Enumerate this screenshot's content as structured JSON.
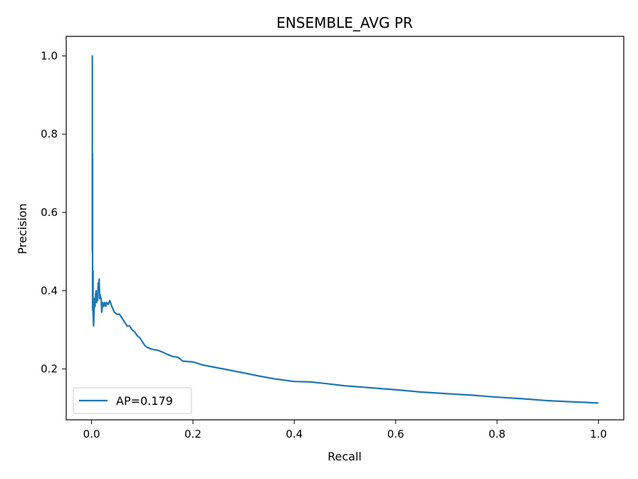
{
  "chart_data": {
    "type": "line",
    "title": "ENSEMBLE_AVG PR",
    "xlabel": "Recall",
    "ylabel": "Precision",
    "xlim": [
      -0.05,
      1.05
    ],
    "ylim": [
      0.07,
      1.05
    ],
    "xticks": [
      0.0,
      0.2,
      0.4,
      0.6,
      0.8,
      1.0
    ],
    "yticks": [
      0.2,
      0.4,
      0.6,
      0.8,
      1.0
    ],
    "xtick_labels": [
      "0.0",
      "0.2",
      "0.4",
      "0.6",
      "0.8",
      "1.0"
    ],
    "ytick_labels": [
      "0.2",
      "0.4",
      "0.6",
      "0.8",
      "1.0"
    ],
    "grid": false,
    "legend_position": "lower-left",
    "series": [
      {
        "name": "AP=0.179",
        "color": "#1f77b4",
        "x": [
          0.0,
          0.0015,
          0.0015,
          0.002,
          0.002,
          0.003,
          0.003,
          0.004,
          0.005,
          0.006,
          0.007,
          0.008,
          0.009,
          0.01,
          0.011,
          0.012,
          0.013,
          0.014,
          0.015,
          0.016,
          0.017,
          0.018,
          0.019,
          0.02,
          0.022,
          0.024,
          0.026,
          0.028,
          0.03,
          0.033,
          0.036,
          0.04,
          0.045,
          0.05,
          0.055,
          0.06,
          0.065,
          0.07,
          0.075,
          0.08,
          0.085,
          0.09,
          0.095,
          0.1,
          0.105,
          0.11,
          0.12,
          0.13,
          0.14,
          0.15,
          0.16,
          0.17,
          0.18,
          0.2,
          0.22,
          0.24,
          0.26,
          0.28,
          0.3,
          0.33,
          0.36,
          0.4,
          0.43,
          0.46,
          0.5,
          0.55,
          0.6,
          0.65,
          0.7,
          0.75,
          0.8,
          0.85,
          0.9,
          0.95,
          1.0
        ],
        "y": [
          1.0,
          1.0,
          0.5,
          0.75,
          0.35,
          0.45,
          0.34,
          0.31,
          0.35,
          0.38,
          0.36,
          0.39,
          0.4,
          0.37,
          0.39,
          0.375,
          0.42,
          0.4,
          0.43,
          0.38,
          0.39,
          0.38,
          0.38,
          0.345,
          0.37,
          0.36,
          0.37,
          0.36,
          0.37,
          0.365,
          0.375,
          0.36,
          0.345,
          0.34,
          0.34,
          0.33,
          0.32,
          0.31,
          0.31,
          0.3,
          0.295,
          0.285,
          0.28,
          0.27,
          0.26,
          0.255,
          0.25,
          0.248,
          0.243,
          0.237,
          0.232,
          0.23,
          0.22,
          0.218,
          0.21,
          0.205,
          0.2,
          0.195,
          0.19,
          0.182,
          0.175,
          0.168,
          0.167,
          0.163,
          0.157,
          0.152,
          0.147,
          0.141,
          0.137,
          0.133,
          0.128,
          0.124,
          0.119,
          0.116,
          0.113
        ]
      }
    ]
  }
}
